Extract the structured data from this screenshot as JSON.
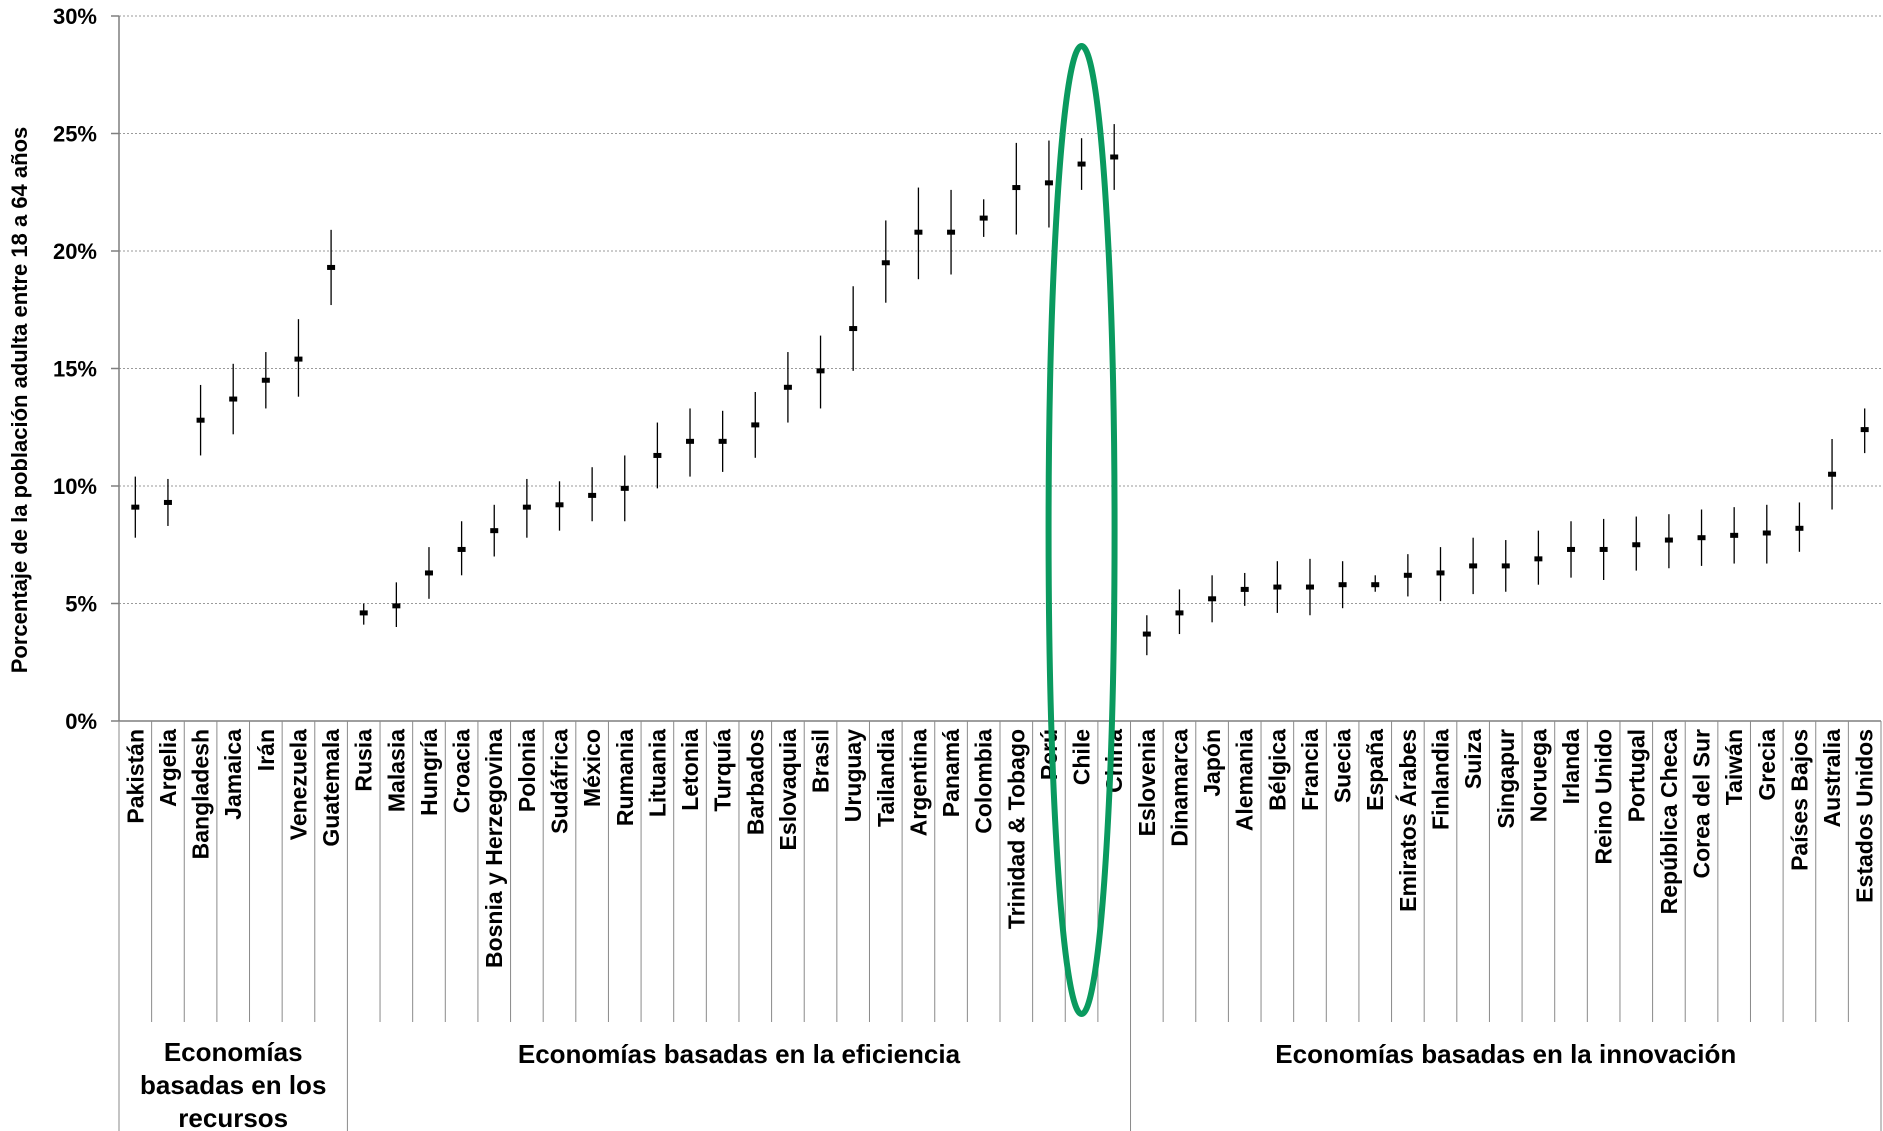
{
  "chart_data": {
    "type": "scatter",
    "ylabel": "Porcentaje de la población adulta entre 18 a 64 años",
    "ylim": [
      0,
      30
    ],
    "yticks": [
      "0%",
      "5%",
      "10%",
      "15%",
      "20%",
      "25%",
      "30%"
    ],
    "grid": true,
    "categories": [
      "Pakistán",
      "Argelia",
      "Bangladesh",
      "Jamaica",
      "Irán",
      "Venezuela",
      "Guatemala",
      "Rusia",
      "Malasia",
      "Hungría",
      "Croacia",
      "Bosnia y Herzegovina",
      "Polonia",
      "Sudáfrica",
      "México",
      "Rumania",
      "Lituania",
      "Letonia",
      "Turquía",
      "Barbados",
      "Eslovaquia",
      "Brasil",
      "Uruguay",
      "Tailandia",
      "Argentina",
      "Panamá",
      "Colombia",
      "Trinidad & Tobago",
      "Perú",
      "Chile",
      "China",
      "Eslovenia",
      "Dinamarca",
      "Japón",
      "Alemania",
      "Bélgica",
      "Francia",
      "Suecia",
      "España",
      "Emiratos Árabes",
      "Finlandia",
      "Suiza",
      "Singapur",
      "Noruega",
      "Irlanda",
      "Reino Unido",
      "Portugal",
      "República Checa",
      "Corea del Sur",
      "Taiwán",
      "Grecia",
      "Países Bajos",
      "Australia",
      "Estados Unidos"
    ],
    "values": [
      9.1,
      9.3,
      12.8,
      13.7,
      14.5,
      15.4,
      19.3,
      4.6,
      4.9,
      6.3,
      7.3,
      8.1,
      9.1,
      9.2,
      9.6,
      9.9,
      11.3,
      11.9,
      11.9,
      12.6,
      14.2,
      14.9,
      16.7,
      19.5,
      20.8,
      20.8,
      21.4,
      22.7,
      22.9,
      23.7,
      24.0,
      3.7,
      4.6,
      5.2,
      5.6,
      5.7,
      5.7,
      5.8,
      5.8,
      6.2,
      6.3,
      6.6,
      6.6,
      6.9,
      7.3,
      7.3,
      7.5,
      7.7,
      7.8,
      7.9,
      8.0,
      8.2,
      10.5,
      12.4
    ],
    "lower": [
      7.8,
      8.3,
      11.3,
      12.2,
      13.3,
      13.8,
      17.7,
      4.1,
      4.0,
      5.2,
      6.2,
      7.0,
      7.8,
      8.1,
      8.5,
      8.5,
      9.9,
      10.4,
      10.6,
      11.2,
      12.7,
      13.3,
      14.9,
      17.8,
      18.8,
      19.0,
      20.6,
      20.7,
      21.0,
      22.6,
      22.6,
      2.8,
      3.7,
      4.2,
      4.9,
      4.6,
      4.5,
      4.8,
      5.5,
      5.3,
      5.1,
      5.4,
      5.5,
      5.8,
      6.1,
      6.0,
      6.4,
      6.5,
      6.6,
      6.7,
      6.7,
      7.2,
      9.0,
      11.4
    ],
    "upper": [
      10.4,
      10.3,
      14.3,
      15.2,
      15.7,
      17.1,
      20.9,
      5.0,
      5.9,
      7.4,
      8.5,
      9.2,
      10.3,
      10.2,
      10.8,
      11.3,
      12.7,
      13.3,
      13.2,
      14.0,
      15.7,
      16.4,
      18.5,
      21.3,
      22.7,
      22.6,
      22.2,
      24.6,
      24.7,
      24.8,
      25.4,
      4.5,
      5.6,
      6.2,
      6.3,
      6.8,
      6.9,
      6.8,
      6.2,
      7.1,
      7.4,
      7.8,
      7.7,
      8.1,
      8.5,
      8.6,
      8.7,
      8.8,
      9.0,
      9.1,
      9.2,
      9.3,
      12.0,
      13.3
    ],
    "groups": [
      {
        "label": "Economías basadas en los recursos",
        "lines": [
          "Economías",
          "basadas en los",
          "recursos"
        ],
        "start": 0,
        "count": 7
      },
      {
        "label": "Economías basadas en la eficiencia",
        "lines": [
          "Economías basadas en la eficiencia"
        ],
        "start": 7,
        "count": 24
      },
      {
        "label": "Economías basadas en la innovación",
        "lines": [
          "Economías basadas en la innovación"
        ],
        "start": 31,
        "count": 23
      }
    ],
    "highlight": {
      "category": "Chile",
      "shape": "ellipse",
      "color": "#0a9a5f"
    },
    "colors": {
      "mark": "#000000",
      "grid": "#9a9a9a",
      "axis": "#7f7f7f"
    }
  }
}
